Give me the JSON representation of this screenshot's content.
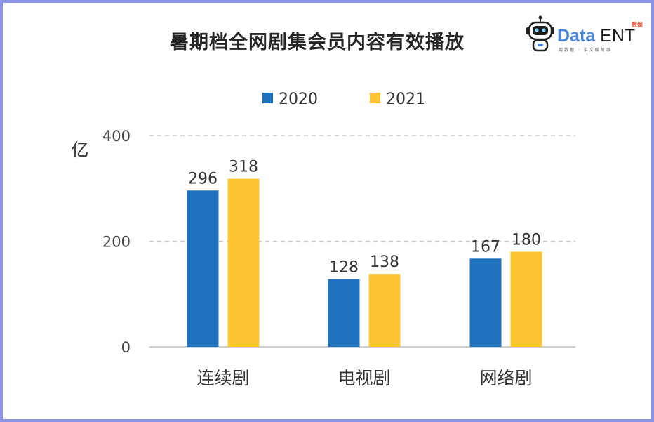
{
  "chart_data": {
    "type": "bar",
    "title": "暑期档全网剧集会员内容有效播放",
    "ylabel": "亿",
    "xlabel": "",
    "categories": [
      "连续剧",
      "电视剧",
      "网络剧"
    ],
    "series": [
      {
        "name": "2020",
        "values": [
          296,
          128,
          167
        ],
        "color": "#1f72be"
      },
      {
        "name": "2021",
        "values": [
          318,
          138,
          180
        ],
        "color": "#fcc531"
      }
    ],
    "ylim": [
      0,
      400
    ],
    "yticks": [
      0,
      200,
      400
    ],
    "grid": true,
    "legend_position": "top-center",
    "data_labels": true
  },
  "logo": {
    "brand_data": "Data",
    "brand_ent": "ENT",
    "brand_cn": "数娱",
    "slogan": "用数据 · 讲文娱故事"
  },
  "colors": {
    "frame_border": "#8b93e8",
    "grid_line": "#c8c8c8",
    "axis_line": "#bfbfbf"
  }
}
